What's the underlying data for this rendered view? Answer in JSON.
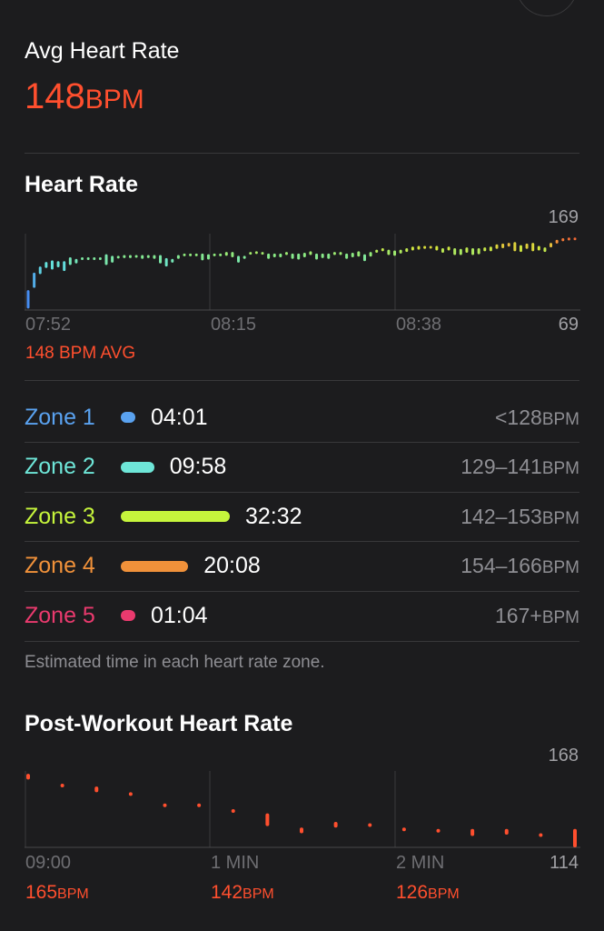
{
  "summary": {
    "label": "Avg Heart Rate",
    "value": "148",
    "unit": "BPM"
  },
  "heart_rate": {
    "title": "Heart Rate",
    "y_max": "169",
    "y_min": "69",
    "x_labels": [
      "07:52",
      "08:15",
      "08:38"
    ],
    "avg_label": "148 BPM AVG",
    "chart_data": {
      "type": "range-bar",
      "ylim": [
        69,
        169
      ],
      "ranges": [
        [
          71,
          95
        ],
        [
          98,
          118
        ],
        [
          116,
          126
        ],
        [
          124,
          132
        ],
        [
          122,
          134
        ],
        [
          125,
          133
        ],
        [
          120,
          133
        ],
        [
          128,
          138
        ],
        [
          130,
          136
        ],
        [
          135,
          138
        ],
        [
          136,
          138
        ],
        [
          136,
          138
        ],
        [
          136,
          138
        ],
        [
          128,
          142
        ],
        [
          131,
          140
        ],
        [
          137,
          140
        ],
        [
          137,
          141
        ],
        [
          137,
          141
        ],
        [
          138,
          141
        ],
        [
          136,
          141
        ],
        [
          137,
          141
        ],
        [
          136,
          141
        ],
        [
          130,
          141
        ],
        [
          126,
          137
        ],
        [
          131,
          136
        ],
        [
          136,
          141
        ],
        [
          140,
          143
        ],
        [
          140,
          143
        ],
        [
          140,
          143
        ],
        [
          134,
          143
        ],
        [
          135,
          142
        ],
        [
          140,
          143
        ],
        [
          140,
          143
        ],
        [
          140,
          145
        ],
        [
          138,
          145
        ],
        [
          131,
          140
        ],
        [
          136,
          140
        ],
        [
          143,
          145
        ],
        [
          143,
          146
        ],
        [
          143,
          145
        ],
        [
          136,
          143
        ],
        [
          138,
          143
        ],
        [
          138,
          143
        ],
        [
          141,
          145
        ],
        [
          136,
          143
        ],
        [
          135,
          143
        ],
        [
          138,
          144
        ],
        [
          141,
          146
        ],
        [
          135,
          143
        ],
        [
          137,
          143
        ],
        [
          136,
          143
        ],
        [
          141,
          145
        ],
        [
          141,
          145
        ],
        [
          136,
          143
        ],
        [
          138,
          144
        ],
        [
          139,
          146
        ],
        [
          133,
          142
        ],
        [
          139,
          145
        ],
        [
          144,
          148
        ],
        [
          146,
          150
        ],
        [
          141,
          148
        ],
        [
          140,
          147
        ],
        [
          143,
          148
        ],
        [
          145,
          150
        ],
        [
          147,
          152
        ],
        [
          148,
          153
        ],
        [
          149,
          153
        ],
        [
          150,
          153
        ],
        [
          147,
          153
        ],
        [
          144,
          150
        ],
        [
          147,
          152
        ],
        [
          141,
          150
        ],
        [
          141,
          149
        ],
        [
          144,
          151
        ],
        [
          141,
          150
        ],
        [
          142,
          150
        ],
        [
          146,
          151
        ],
        [
          146,
          152
        ],
        [
          149,
          155
        ],
        [
          150,
          156
        ],
        [
          152,
          157
        ],
        [
          146,
          158
        ],
        [
          145,
          154
        ],
        [
          149,
          156
        ],
        [
          146,
          157
        ],
        [
          147,
          153
        ],
        [
          145,
          151
        ],
        [
          151,
          157
        ],
        [
          156,
          161
        ],
        [
          159,
          163
        ],
        [
          160,
          164
        ],
        [
          161,
          164
        ]
      ]
    }
  },
  "zones": [
    {
      "name": "Zone 1",
      "time": "04:01",
      "range": "<128",
      "unit": "BPM",
      "color": "#5aa2f0"
    },
    {
      "name": "Zone 2",
      "time": "09:58",
      "range": "129–141",
      "unit": "BPM",
      "color": "#6ee6d8"
    },
    {
      "name": "Zone 3",
      "time": "32:32",
      "range": "142–153",
      "unit": "BPM",
      "color": "#c6f53c"
    },
    {
      "name": "Zone 4",
      "time": "20:08",
      "range": "154–166",
      "unit": "BPM",
      "color": "#f0913a"
    },
    {
      "name": "Zone 5",
      "time": "01:04",
      "range": "167+",
      "unit": "BPM",
      "color": "#ea3a6e"
    }
  ],
  "zones_note": "Estimated time in each heart rate zone.",
  "post_workout": {
    "title": "Post-Workout Heart Rate",
    "y_max": "168",
    "y_min": "114",
    "x_labels": [
      "09:00",
      "1 MIN",
      "2 MIN"
    ],
    "values": [
      {
        "v": "165",
        "unit": "BPM"
      },
      {
        "v": "142",
        "unit": "BPM"
      },
      {
        "v": "126",
        "unit": "BPM"
      }
    ],
    "chart_data": {
      "type": "range-bar",
      "ylim": [
        114,
        168
      ],
      "ranges": [
        [
          162,
          166
        ],
        [
          158,
          159
        ],
        [
          153,
          157
        ],
        [
          151,
          153
        ],
        [
          144,
          145
        ],
        [
          143,
          145
        ],
        [
          140,
          141
        ],
        [
          129,
          138
        ],
        [
          124,
          128
        ],
        [
          128,
          132
        ],
        [
          130,
          131
        ],
        [
          127,
          128
        ],
        [
          126,
          127
        ],
        [
          122,
          127
        ],
        [
          123,
          127
        ],
        [
          123,
          124
        ],
        [
          114,
          127
        ]
      ],
      "color": "#ff4f2e"
    }
  }
}
